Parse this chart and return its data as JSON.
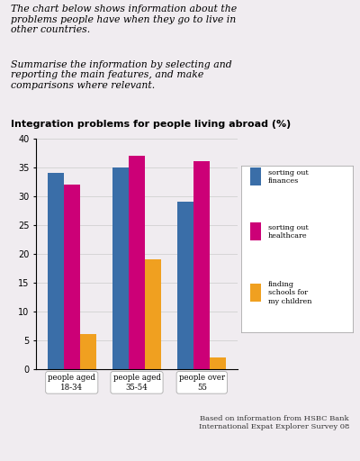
{
  "title": "Integration problems for people living abroad (%)",
  "categories": [
    "people aged\n18-34",
    "people aged\n35-54",
    "people over\n55"
  ],
  "series": {
    "sorting out finances": [
      34,
      35,
      29
    ],
    "sorting out healthcare": [
      32,
      37,
      36
    ],
    "finding schools for\nmy children": [
      6,
      19,
      2
    ]
  },
  "colors": {
    "sorting out finances": "#3a6ea8",
    "sorting out healthcare": "#cc0077",
    "finding schools for\nmy children": "#f0a020"
  },
  "ylim": [
    0,
    40
  ],
  "yticks": [
    0,
    5,
    10,
    15,
    20,
    25,
    30,
    35,
    40
  ],
  "background_color": "#f0ecf0",
  "header_text1": "The chart below shows information about the\nproblems people have when they go to live in\nother countries.",
  "header_text2": "Summarise the information by selecting and\nreporting the main features, and make\ncomparisons where relevant.",
  "footer_text": "Based on information from HSBC Bank\nInternational Expat Explorer Survey 08",
  "legend_entries": [
    [
      "sorting out\nfinances",
      "#3a6ea8"
    ],
    [
      "sorting out\nhealthcare",
      "#cc0077"
    ],
    [
      "finding\nschools for\nmy children",
      "#f0a020"
    ]
  ]
}
